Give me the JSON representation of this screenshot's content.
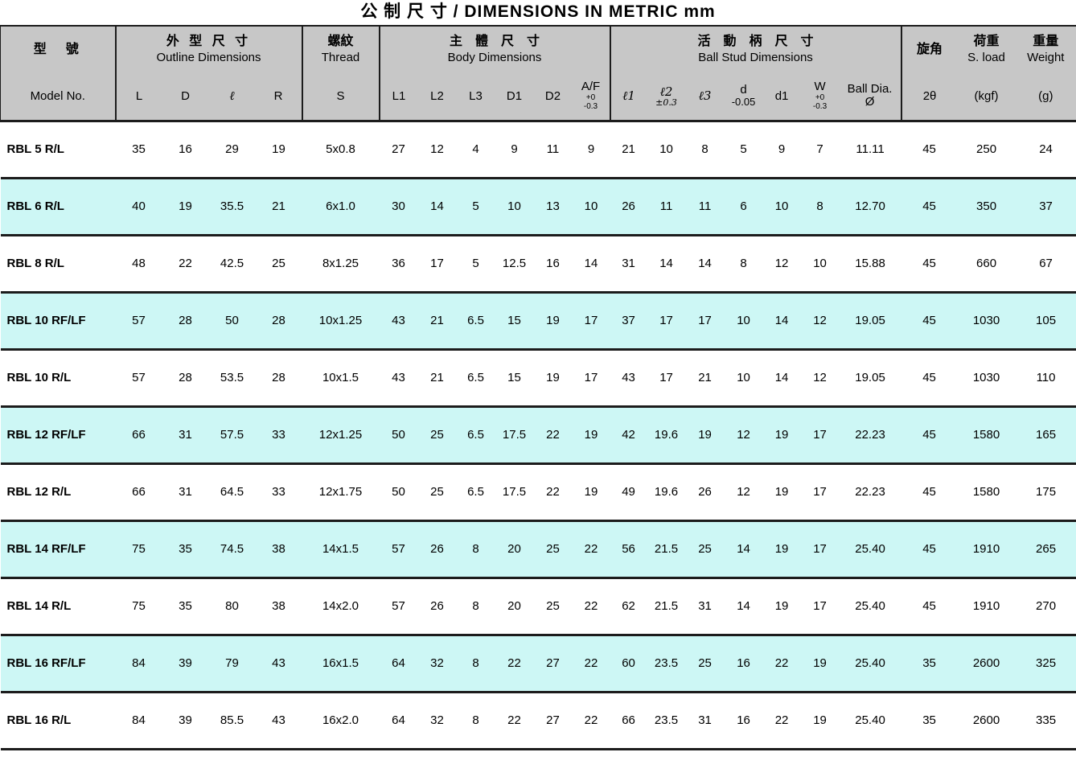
{
  "title": "公 制 尺 寸 / DIMENSIONS IN METRIC mm",
  "colors": {
    "header_bg": "#c7c7c7",
    "row_alt_bg": "#cdf7f5",
    "border": "#1c1c1c"
  },
  "header": {
    "model": {
      "zh": "型　號",
      "en": "Model No."
    },
    "outline": {
      "zh": "外 型 尺 寸",
      "en": "Outline Dimensions",
      "cols": [
        "L",
        "D",
        "ℓ",
        "R"
      ]
    },
    "thread": {
      "zh": "螺紋",
      "en": "Thread",
      "col": "S"
    },
    "body": {
      "zh": "主　體　尺　寸",
      "en": "Body Dimensions",
      "cols": [
        "L1",
        "L2",
        "L3",
        "D1",
        "D2"
      ],
      "af": {
        "main": "A/F",
        "tol_top": "+0",
        "tol_bot": "-0.3"
      }
    },
    "ball": {
      "zh": "活　動　柄　尺　寸",
      "en": "Ball Stud Dimensions",
      "l1": "ℓ1",
      "l2": {
        "main": "ℓ2",
        "tol": "±0.3"
      },
      "l3": "ℓ3",
      "d": {
        "main": "d",
        "tol": "-0.05"
      },
      "d1": "d1",
      "w": {
        "main": "W",
        "tol_top": "+0",
        "tol_bot": "-0.3"
      },
      "ball_dia": {
        "line1": "Ball Dia.",
        "line2": "Ø"
      }
    },
    "angle": {
      "zh": "旋角",
      "sub": "2θ"
    },
    "load": {
      "zh": "荷重",
      "en": "S. load",
      "sub": "(kgf)"
    },
    "weight": {
      "zh": "重量",
      "en": "Weight",
      "sub": "(g)"
    }
  },
  "table": {
    "rows": [
      {
        "model": "RBL 5 R/L",
        "values": [
          "35",
          "16",
          "29",
          "19",
          "5x0.8",
          "27",
          "12",
          "4",
          "9",
          "11",
          "9",
          "21",
          "10",
          "8",
          "5",
          "9",
          "7",
          "11.11",
          "45",
          "250",
          "24"
        ]
      },
      {
        "model": "RBL 6 R/L",
        "values": [
          "40",
          "19",
          "35.5",
          "21",
          "6x1.0",
          "30",
          "14",
          "5",
          "10",
          "13",
          "10",
          "26",
          "11",
          "11",
          "6",
          "10",
          "8",
          "12.70",
          "45",
          "350",
          "37"
        ]
      },
      {
        "model": "RBL 8 R/L",
        "values": [
          "48",
          "22",
          "42.5",
          "25",
          "8x1.25",
          "36",
          "17",
          "5",
          "12.5",
          "16",
          "14",
          "31",
          "14",
          "14",
          "8",
          "12",
          "10",
          "15.88",
          "45",
          "660",
          "67"
        ]
      },
      {
        "model": "RBL 10 RF/LF",
        "values": [
          "57",
          "28",
          "50",
          "28",
          "10x1.25",
          "43",
          "21",
          "6.5",
          "15",
          "19",
          "17",
          "37",
          "17",
          "17",
          "10",
          "14",
          "12",
          "19.05",
          "45",
          "1030",
          "105"
        ]
      },
      {
        "model": "RBL 10 R/L",
        "values": [
          "57",
          "28",
          "53.5",
          "28",
          "10x1.5",
          "43",
          "21",
          "6.5",
          "15",
          "19",
          "17",
          "43",
          "17",
          "21",
          "10",
          "14",
          "12",
          "19.05",
          "45",
          "1030",
          "110"
        ]
      },
      {
        "model": "RBL 12 RF/LF",
        "values": [
          "66",
          "31",
          "57.5",
          "33",
          "12x1.25",
          "50",
          "25",
          "6.5",
          "17.5",
          "22",
          "19",
          "42",
          "19.6",
          "19",
          "12",
          "19",
          "17",
          "22.23",
          "45",
          "1580",
          "165"
        ]
      },
      {
        "model": "RBL 12 R/L",
        "values": [
          "66",
          "31",
          "64.5",
          "33",
          "12x1.75",
          "50",
          "25",
          "6.5",
          "17.5",
          "22",
          "19",
          "49",
          "19.6",
          "26",
          "12",
          "19",
          "17",
          "22.23",
          "45",
          "1580",
          "175"
        ]
      },
      {
        "model": "RBL 14 RF/LF",
        "values": [
          "75",
          "35",
          "74.5",
          "38",
          "14x1.5",
          "57",
          "26",
          "8",
          "20",
          "25",
          "22",
          "56",
          "21.5",
          "25",
          "14",
          "19",
          "17",
          "25.40",
          "45",
          "1910",
          "265"
        ]
      },
      {
        "model": "RBL 14 R/L",
        "values": [
          "75",
          "35",
          "80",
          "38",
          "14x2.0",
          "57",
          "26",
          "8",
          "20",
          "25",
          "22",
          "62",
          "21.5",
          "31",
          "14",
          "19",
          "17",
          "25.40",
          "45",
          "1910",
          "270"
        ]
      },
      {
        "model": "RBL 16 RF/LF",
        "values": [
          "84",
          "39",
          "79",
          "43",
          "16x1.5",
          "64",
          "32",
          "8",
          "22",
          "27",
          "22",
          "60",
          "23.5",
          "25",
          "16",
          "22",
          "19",
          "25.40",
          "35",
          "2600",
          "325"
        ]
      },
      {
        "model": "RBL 16 R/L",
        "values": [
          "84",
          "39",
          "85.5",
          "43",
          "16x2.0",
          "64",
          "32",
          "8",
          "22",
          "27",
          "22",
          "66",
          "23.5",
          "31",
          "16",
          "22",
          "19",
          "25.40",
          "35",
          "2600",
          "335"
        ]
      }
    ]
  }
}
